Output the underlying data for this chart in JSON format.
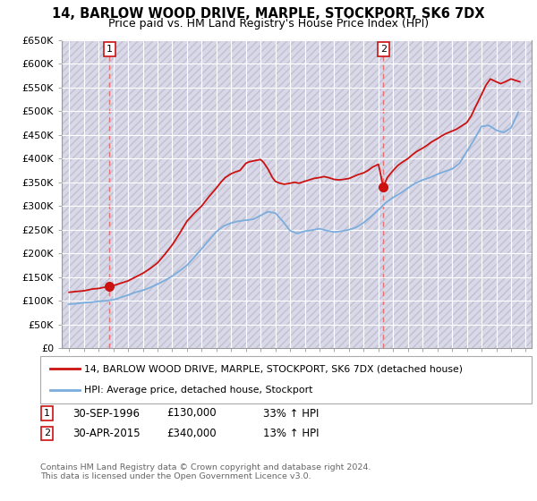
{
  "title": "14, BARLOW WOOD DRIVE, MARPLE, STOCKPORT, SK6 7DX",
  "subtitle": "Price paid vs. HM Land Registry's House Price Index (HPI)",
  "ylim": [
    0,
    650000
  ],
  "yticks": [
    0,
    50000,
    100000,
    150000,
    200000,
    250000,
    300000,
    350000,
    400000,
    450000,
    500000,
    550000,
    600000,
    650000
  ],
  "xlim_start": 1993.5,
  "xlim_end": 2025.4,
  "plot_bg": "#f0f0f8",
  "hatch_color": "#d8d8e8",
  "grid_color": "#ffffff",
  "transaction1": {
    "year": 1996.75,
    "price": 130000,
    "label": "1",
    "pct": "33%",
    "date": "30-SEP-1996"
  },
  "transaction2": {
    "year": 2015.33,
    "price": 340000,
    "label": "2",
    "pct": "13%",
    "date": "30-APR-2015"
  },
  "red_line_color": "#cc1111",
  "blue_line_color": "#7aaddd",
  "dashed_line_color": "#e87070",
  "marker_color": "#cc1111",
  "legend_label1": "14, BARLOW WOOD DRIVE, MARPLE, STOCKPORT, SK6 7DX (detached house)",
  "legend_label2": "HPI: Average price, detached house, Stockport",
  "footnote": "Contains HM Land Registry data © Crown copyright and database right 2024.\nThis data is licensed under the Open Government Licence v3.0.",
  "hpi_years": [
    1994.0,
    1994.5,
    1995.0,
    1995.5,
    1996.0,
    1996.5,
    1997.0,
    1997.5,
    1998.0,
    1998.5,
    1999.0,
    1999.5,
    2000.0,
    2000.5,
    2001.0,
    2001.5,
    2002.0,
    2002.5,
    2003.0,
    2003.5,
    2004.0,
    2004.5,
    2005.0,
    2005.5,
    2006.0,
    2006.5,
    2007.0,
    2007.5,
    2008.0,
    2008.5,
    2009.0,
    2009.5,
    2010.0,
    2010.5,
    2011.0,
    2011.5,
    2012.0,
    2012.5,
    2013.0,
    2013.5,
    2014.0,
    2014.5,
    2015.0,
    2015.5,
    2016.0,
    2016.5,
    2017.0,
    2017.5,
    2018.0,
    2018.5,
    2019.0,
    2019.5,
    2020.0,
    2020.5,
    2021.0,
    2021.5,
    2022.0,
    2022.5,
    2023.0,
    2023.5,
    2024.0,
    2024.5
  ],
  "hpi_values": [
    93000,
    94000,
    96000,
    97000,
    99000,
    100000,
    102000,
    107000,
    112000,
    118000,
    122000,
    128000,
    135000,
    143000,
    152000,
    163000,
    175000,
    192000,
    210000,
    228000,
    246000,
    258000,
    264000,
    268000,
    270000,
    272000,
    280000,
    288000,
    285000,
    268000,
    248000,
    242000,
    247000,
    249000,
    252000,
    248000,
    245000,
    247000,
    250000,
    255000,
    265000,
    278000,
    292000,
    307000,
    318000,
    327000,
    338000,
    348000,
    355000,
    360000,
    367000,
    373000,
    378000,
    390000,
    415000,
    440000,
    468000,
    470000,
    460000,
    455000,
    465000,
    498000
  ],
  "red_years": [
    1994.0,
    1994.3,
    1994.6,
    1995.0,
    1995.3,
    1995.6,
    1996.0,
    1996.3,
    1996.75,
    1997.0,
    1997.3,
    1997.6,
    1998.0,
    1998.5,
    1999.0,
    1999.5,
    2000.0,
    2000.5,
    2001.0,
    2001.5,
    2002.0,
    2002.5,
    2003.0,
    2003.5,
    2004.0,
    2004.3,
    2004.6,
    2005.0,
    2005.3,
    2005.6,
    2006.0,
    2006.2,
    2006.5,
    2006.8,
    2007.0,
    2007.2,
    2007.5,
    2007.8,
    2008.0,
    2008.3,
    2008.6,
    2009.0,
    2009.3,
    2009.6,
    2010.0,
    2010.3,
    2010.6,
    2011.0,
    2011.3,
    2011.6,
    2012.0,
    2012.3,
    2012.6,
    2013.0,
    2013.3,
    2013.6,
    2014.0,
    2014.3,
    2014.6,
    2015.0,
    2015.33,
    2015.6,
    2016.0,
    2016.3,
    2016.6,
    2017.0,
    2017.3,
    2017.6,
    2018.0,
    2018.3,
    2018.6,
    2019.0,
    2019.3,
    2019.6,
    2020.0,
    2020.3,
    2020.6,
    2021.0,
    2021.3,
    2021.6,
    2022.0,
    2022.3,
    2022.6,
    2023.0,
    2023.3,
    2023.6,
    2024.0,
    2024.3,
    2024.6
  ],
  "red_values": [
    118000,
    119000,
    120000,
    121000,
    123000,
    125000,
    126000,
    128000,
    130000,
    132000,
    135000,
    138000,
    142000,
    150000,
    158000,
    168000,
    180000,
    198000,
    218000,
    242000,
    268000,
    285000,
    300000,
    320000,
    338000,
    350000,
    360000,
    368000,
    372000,
    375000,
    390000,
    393000,
    395000,
    397000,
    398000,
    392000,
    378000,
    360000,
    352000,
    348000,
    346000,
    348000,
    350000,
    348000,
    352000,
    355000,
    358000,
    360000,
    362000,
    360000,
    356000,
    355000,
    356000,
    358000,
    362000,
    366000,
    370000,
    375000,
    382000,
    388000,
    340000,
    360000,
    375000,
    385000,
    392000,
    400000,
    408000,
    415000,
    422000,
    428000,
    435000,
    442000,
    448000,
    453000,
    458000,
    462000,
    468000,
    476000,
    490000,
    510000,
    535000,
    555000,
    568000,
    562000,
    558000,
    562000,
    568000,
    565000,
    562000
  ]
}
